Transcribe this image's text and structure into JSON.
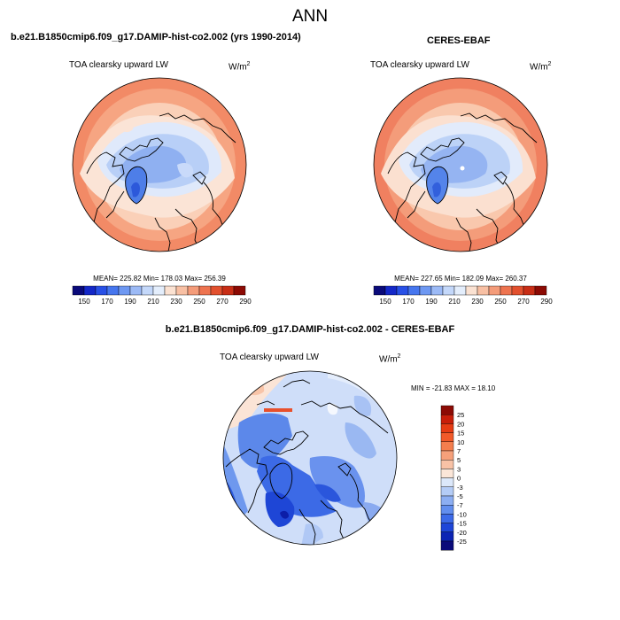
{
  "figure": {
    "title": "ANN",
    "panel_left": {
      "header": "b.e21.B1850cmip6.f09_g17.DAMIP-hist-co2.002 (yrs 1990-2014)",
      "variable": "TOA clearsky upward LW",
      "unit_base": "W/m",
      "unit_exp": "2",
      "stats": "MEAN= 225.82  Min= 178.03  Max= 256.39"
    },
    "panel_right": {
      "header": "CERES-EBAF",
      "variable": "TOA clearsky upward LW",
      "unit_base": "W/m",
      "unit_exp": "2",
      "stats": "MEAN= 227.65  Min= 182.09  Max= 260.37"
    },
    "panel_diff": {
      "header": "b.e21.B1850cmip6.f09_g17.DAMIP-hist-co2.002 - CERES-EBAF",
      "variable": "TOA clearsky upward LW",
      "unit_base": "W/m",
      "unit_exp": "2",
      "stats": "MIN = -21.83 MAX =  18.10"
    }
  },
  "colorbar_main": {
    "tick_labels": [
      "150",
      "170",
      "190",
      "210",
      "230",
      "250",
      "270",
      "290"
    ],
    "colors": [
      "#0a0a7a",
      "#1428c8",
      "#2850e6",
      "#4676ee",
      "#6e98f2",
      "#9cbaf6",
      "#c4d8fa",
      "#e4eefc",
      "#fbe2d2",
      "#f8c0a4",
      "#f49c7a",
      "#ee7450",
      "#e2502e",
      "#c82e16",
      "#8c0a04"
    ]
  },
  "colorbar_diff": {
    "tick_labels": [
      "25",
      "20",
      "15",
      "10",
      "7",
      "5",
      "3",
      "0",
      "-3",
      "-5",
      "-7",
      "-10",
      "-15",
      "-20",
      "-25"
    ],
    "colors": [
      "#8c0a04",
      "#c81e0a",
      "#e63c14",
      "#f25a2a",
      "#f47e4e",
      "#f6a07a",
      "#f8c2a6",
      "#fbe6d8",
      "#dce8fa",
      "#b4ccf6",
      "#8caef2",
      "#628eee",
      "#3c6ae8",
      "#1e46d8",
      "#0c24b4",
      "#0a0a7a"
    ]
  }
}
